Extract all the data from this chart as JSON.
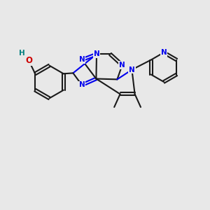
{
  "background_color": "#e8e8e8",
  "bond_color": "#1a1a1a",
  "nitrogen_color": "#0000ee",
  "oxygen_color": "#cc0000",
  "hydrogen_color": "#008080",
  "figsize": [
    3.0,
    3.0
  ],
  "dpi": 100,
  "xlim": [
    0,
    10
  ],
  "ylim": [
    0,
    10
  ]
}
